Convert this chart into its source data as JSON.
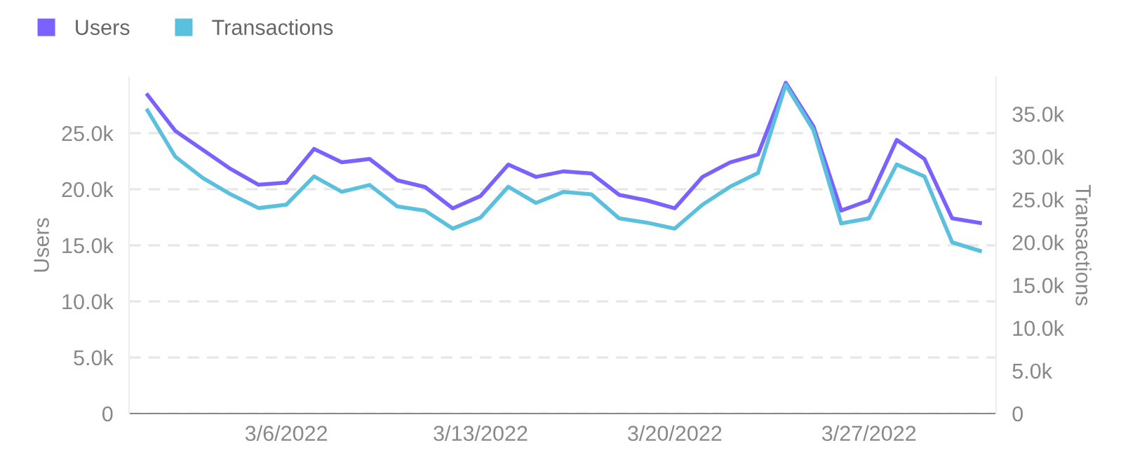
{
  "chart_data": {
    "type": "line",
    "ylabel": "Users",
    "y2label": "Transactions",
    "x": [
      "2022-03-01",
      "2022-03-02",
      "2022-03-03",
      "2022-03-04",
      "2022-03-05",
      "2022-03-06",
      "2022-03-07",
      "2022-03-08",
      "2022-03-09",
      "2022-03-10",
      "2022-03-11",
      "2022-03-12",
      "2022-03-13",
      "2022-03-14",
      "2022-03-15",
      "2022-03-16",
      "2022-03-17",
      "2022-03-18",
      "2022-03-19",
      "2022-03-20",
      "2022-03-21",
      "2022-03-22",
      "2022-03-23",
      "2022-03-24",
      "2022-03-25",
      "2022-03-26",
      "2022-03-27",
      "2022-03-28",
      "2022-03-29",
      "2022-03-30",
      "2022-03-31"
    ],
    "series": [
      {
        "name": "Users",
        "color": "#7b61ff",
        "values": [
          28400,
          25200,
          23500,
          21800,
          20400,
          20600,
          23600,
          22400,
          22700,
          20800,
          20200,
          18300,
          19400,
          22200,
          21100,
          21600,
          21400,
          19500,
          19000,
          18300,
          21100,
          22400,
          23100,
          29500,
          25600,
          18100,
          19000,
          24400,
          22700,
          17400,
          17000
        ]
      },
      {
        "name": "Transactions",
        "color": "#5bc0de",
        "axis": "y2",
        "values": [
          35400,
          30000,
          27500,
          25600,
          24000,
          24400,
          27700,
          25900,
          26700,
          24200,
          23700,
          21600,
          22900,
          26500,
          24600,
          25900,
          25600,
          22800,
          22300,
          21600,
          24400,
          26500,
          28100,
          38400,
          33100,
          22200,
          22800,
          29100,
          27700,
          20000,
          19000
        ]
      }
    ],
    "xlim": [
      "2022-02-28T08:00",
      "2022-03-31T14:00"
    ],
    "xticks": [
      {
        "value": "2022-03-06",
        "label": "3/6/2022"
      },
      {
        "value": "2022-03-13",
        "label": "3/13/2022"
      },
      {
        "value": "2022-03-20",
        "label": "3/20/2022"
      },
      {
        "value": "2022-03-27",
        "label": "3/27/2022"
      }
    ],
    "ylim": [
      0,
      30000
    ],
    "yticks": [
      0,
      {
        "value": 5000,
        "label": "5.0k"
      },
      {
        "value": 10000,
        "label": "10.0k"
      },
      {
        "value": 15000,
        "label": "15.0k"
      },
      {
        "value": 20000,
        "label": "20.0k"
      },
      {
        "value": 25000,
        "label": "25.0k"
      }
    ],
    "y2lim": [
      0,
      39300
    ],
    "y2ticks": [
      0,
      {
        "value": 5000,
        "label": "5.0k"
      },
      {
        "value": 10000,
        "label": "10.0k"
      },
      {
        "value": 15000,
        "label": "15.0k"
      },
      {
        "value": 20000,
        "label": "20.0k"
      },
      {
        "value": 25000,
        "label": "25.0k"
      },
      {
        "value": 30000,
        "label": "30.0k"
      },
      {
        "value": 35000,
        "label": "35.0k"
      }
    ],
    "grid": "y",
    "legend": "top left",
    "marker": "none",
    "line_style": "solid"
  }
}
